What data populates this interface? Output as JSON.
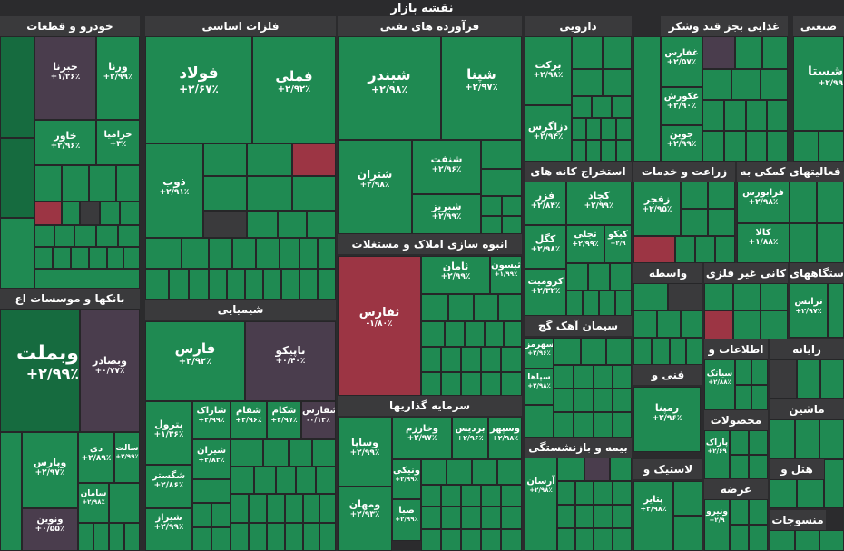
{
  "map_title": "نقشه بازار",
  "sectors": {
    "khodro": "خودرو و قطعات",
    "felezat": "فلزات اساسی",
    "faravarde": "فرآورده های نفتی",
    "daroei": "دارویی",
    "ghazaei": "غذایی بجز قند وشکر",
    "sanati": "صنعتی",
    "estekhraj": "استخراج کانه های",
    "zeraat": "زراعت و خدمات",
    "faaliat": "فعالیتهای کمکی به",
    "anbooh": "انبوه سازی املاک و مستغلات",
    "banks": "بانکها و موسسات اع",
    "shimiaei": "شیمیایی",
    "vaseteh": "واسطه",
    "kani": "کانی غیر فلزی",
    "dastgah": "دستگاههای",
    "siman": "سیمان آهک گچ",
    "etelaat": "اطلاعات و",
    "rayaneh": "رایانه",
    "fani": "فنی و",
    "mahsoolat": "محصولات",
    "mashin": "ماشین",
    "sarmaye": "سرمایه گذاریها",
    "bimeh": "بیمه و بازنشستگی",
    "lastik": "لاستیک و",
    "hotel": "هتل و",
    "arzeh": "عرضه",
    "mansoojat": "منسوجات"
  },
  "tiles": {
    "foolad": {
      "name": "فولاد",
      "pct": "+۲/۶۷٪"
    },
    "femli": {
      "name": "فملی",
      "pct": "+۲/۹۲٪"
    },
    "shabandar": {
      "name": "شبندر",
      "pct": "+۲/۹۸٪"
    },
    "shepna": {
      "name": "شپنا",
      "pct": "+۲/۹۷٪"
    },
    "barkat": {
      "name": "برکت",
      "pct": "+۲/۹۸٪"
    },
    "dazagros": {
      "name": "دزاگرس",
      "pct": "+۲/۹۴٪"
    },
    "ghafars": {
      "name": "غفارس",
      "pct": "+۲/۵۷٪"
    },
    "ghakurosh": {
      "name": "غکورش",
      "pct": "+۲/۹۰٪"
    },
    "jovein": {
      "name": "جوین",
      "pct": "+۲/۹۹٪"
    },
    "shasta": {
      "name": "شستا",
      "pct": "+۲/۹۹"
    },
    "khabahman": {
      "name": "خبرنا",
      "pct": "+۱/۲۶٪"
    },
    "varena": {
      "name": "ورنا",
      "pct": "+۲/۹۹٪"
    },
    "khavar": {
      "name": "خاور",
      "pct": "+۲/۹۶٪"
    },
    "khazamia": {
      "name": "خزامیا",
      "pct": "+۳٪"
    },
    "zob": {
      "name": "ذوب",
      "pct": "+۲/۹۱٪"
    },
    "shanaft": {
      "name": "شنفت",
      "pct": "+۲/۹۶٪"
    },
    "shetran": {
      "name": "شتران",
      "pct": "+۲/۹۸٪"
    },
    "shabriz": {
      "name": "شبریز",
      "pct": "+۲/۹۹٪"
    },
    "fazar": {
      "name": "فزر",
      "pct": "+۲/۸۴٪"
    },
    "kchad": {
      "name": "کچاد",
      "pct": "+۲/۹۹٪"
    },
    "kegol": {
      "name": "کگل",
      "pct": "+۲/۹۸٪"
    },
    "tajli": {
      "name": "تجلی",
      "pct": "+۲/۹۹٪"
    },
    "kaboko": {
      "name": "کبکو",
      "pct": "+۲/۹"
    },
    "kromit": {
      "name": "کرومیت",
      "pct": "+۲/۳۲٪"
    },
    "zafjar": {
      "name": "زفجر",
      "pct": "+۲/۹۵٪"
    },
    "farabours": {
      "name": "فرابورس",
      "pct": "+۲/۹۸٪"
    },
    "kala": {
      "name": "کالا",
      "pct": "+۱/۸۸٪"
    },
    "tanfars": {
      "name": "ثفارس",
      "pct": "-۱/۸۰٪"
    },
    "saman": {
      "name": "ثامان",
      "pct": "+۲/۹۹٪"
    },
    "yasoon": {
      "name": "ثبسون",
      "pct": "+۱/۹۹٪"
    },
    "vabsader": {
      "name": "وبصادر",
      "pct": "+۰/۷۷٪"
    },
    "vbmellat": {
      "name": "وبملت",
      "pct": "+۲/۹۹٪"
    },
    "fars": {
      "name": "فارس",
      "pct": "+۲/۹۲٪"
    },
    "tapiko": {
      "name": "تاپیکو",
      "pct": "+۰/۴۰٪"
    },
    "terans": {
      "name": "ترانس",
      "pct": "+۲/۹۷٪"
    },
    "sahrmaz": {
      "name": "سهرمز",
      "pct": "+۲/۹۶٪"
    },
    "sepaha": {
      "name": "سپاها",
      "pct": "+۲/۹۸٪"
    },
    "petrol": {
      "name": "پترول",
      "pct": "+۱/۳۶٪"
    },
    "sharak": {
      "name": "شاراک",
      "pct": "+۲/۹۹٪"
    },
    "shafam": {
      "name": "شفام",
      "pct": "+۲/۹۶٪"
    },
    "shakam": {
      "name": "شکام",
      "pct": "+۲/۹۷٪"
    },
    "safars": {
      "name": "شفارس",
      "pct": "-۰/۱۳٪"
    },
    "shiran": {
      "name": "شیران",
      "pct": "+۲/۸۳٪"
    },
    "shagostar": {
      "name": "شگستر",
      "pct": "+۲/۸۶٪"
    },
    "shiraz": {
      "name": "شیراز",
      "pct": "+۲/۹۹٪"
    },
    "remina": {
      "name": "رمپنا",
      "pct": "+۲/۹۶٪"
    },
    "siatak": {
      "name": "سیاتک",
      "pct": "+۲/۸۸٪"
    },
    "barak": {
      "name": "پاراک",
      "pct": "+۲/۶۹"
    },
    "vapars": {
      "name": "وپارس",
      "pct": "+۲/۹۷٪"
    },
    "di": {
      "name": "دی",
      "pct": "+۲/۸۹٪"
    },
    "vasalat": {
      "name": "سالت",
      "pct": "+۲/۹۹٪"
    },
    "saman2": {
      "name": "سامان",
      "pct": "+۲/۹۸٪"
    },
    "vonvin": {
      "name": "ونوین",
      "pct": "+۰/۵۵٪"
    },
    "vasapa": {
      "name": "وساپا",
      "pct": "+۲/۹۹٪"
    },
    "vakharazm": {
      "name": "وخارزم",
      "pct": "+۲/۹۷٪"
    },
    "vabardis": {
      "name": "بردیس",
      "pct": "+۲/۹۶٪"
    },
    "vasapahr": {
      "name": "وسپهر",
      "pct": "+۲/۹۸٪"
    },
    "vaniki": {
      "name": "ونیکی",
      "pct": "+۲/۹۹٪"
    },
    "vamahan": {
      "name": "ومهان",
      "pct": "+۲/۹۳٪"
    },
    "vasebah": {
      "name": "صبا",
      "pct": "+۲/۹۹٪"
    },
    "arasan": {
      "name": "آرسان",
      "pct": "+۲/۹۸٪"
    },
    "patir": {
      "name": "پتایر",
      "pct": "+۲/۹۸٪"
    },
    "nirou": {
      "name": "ونیرو",
      "pct": "+۲/۹"
    }
  },
  "colors": {
    "up": "#1f8a52",
    "up_dark": "#166b3f",
    "down": "#9c3544",
    "flat": "#4a3d4d",
    "header": "#3a3a3c"
  }
}
